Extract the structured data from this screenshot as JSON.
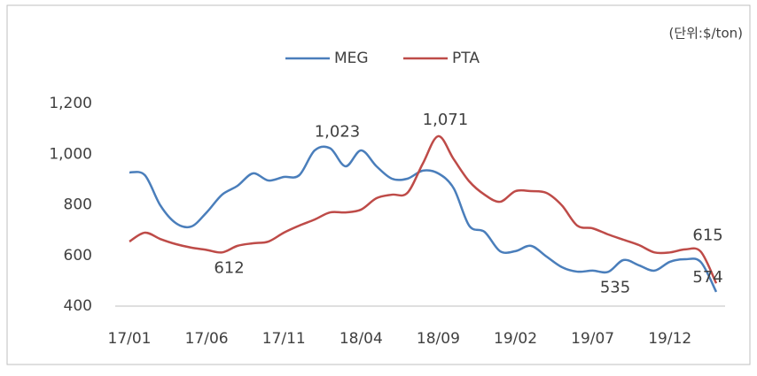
{
  "chart_data": {
    "type": "line",
    "unit_label": "(단위:$/ton)",
    "categories": [
      "17/01",
      null,
      null,
      null,
      null,
      "17/06",
      null,
      null,
      null,
      null,
      "17/11",
      null,
      null,
      null,
      null,
      "18/04",
      null,
      null,
      null,
      null,
      "18/09",
      null,
      null,
      null,
      null,
      "19/02",
      null,
      null,
      null,
      null,
      "19/07",
      null,
      null,
      null,
      null,
      "19/12",
      null,
      null,
      null
    ],
    "series": [
      {
        "name": "MEG",
        "color": "#4a7ebb",
        "values": [
          928,
          917,
          798,
          728,
          714,
          770,
          840,
          875,
          924,
          896,
          910,
          917,
          1015,
          1023,
          952,
          1015,
          952,
          903,
          903,
          935,
          924,
          865,
          718,
          693,
          617,
          617,
          638,
          596,
          554,
          536,
          540,
          535,
          582,
          561,
          540,
          575,
          585,
          574,
          456
        ],
        "value_labels": [
          null,
          null,
          null,
          null,
          null,
          null,
          null,
          null,
          null,
          null,
          null,
          null,
          null,
          "1,023",
          null,
          null,
          null,
          null,
          null,
          null,
          null,
          null,
          null,
          null,
          null,
          null,
          null,
          null,
          null,
          null,
          null,
          "535",
          null,
          null,
          null,
          null,
          null,
          "574",
          null
        ]
      },
      {
        "name": "PTA",
        "color": "#be4b48",
        "values": [
          655,
          690,
          665,
          645,
          631,
          622,
          612,
          638,
          648,
          655,
          690,
          718,
          742,
          770,
          770,
          781,
          826,
          840,
          847,
          963,
          1071,
          980,
          893,
          840,
          812,
          854,
          854,
          847,
          798,
          718,
          707,
          683,
          662,
          641,
          612,
          612,
          624,
          615,
          490
        ],
        "value_labels": [
          null,
          null,
          null,
          null,
          null,
          null,
          "612",
          null,
          null,
          null,
          null,
          null,
          null,
          null,
          null,
          null,
          null,
          null,
          null,
          null,
          "1,071",
          null,
          null,
          null,
          null,
          null,
          null,
          null,
          null,
          null,
          null,
          null,
          null,
          null,
          null,
          null,
          null,
          "615",
          null
        ]
      }
    ],
    "ylim": [
      400,
      1200
    ],
    "yticks": [
      400,
      600,
      800,
      {
        "value": 1000,
        "label": "1,000"
      },
      {
        "value": 1200,
        "label": "1,200"
      }
    ],
    "grid": false,
    "legend": "top"
  }
}
